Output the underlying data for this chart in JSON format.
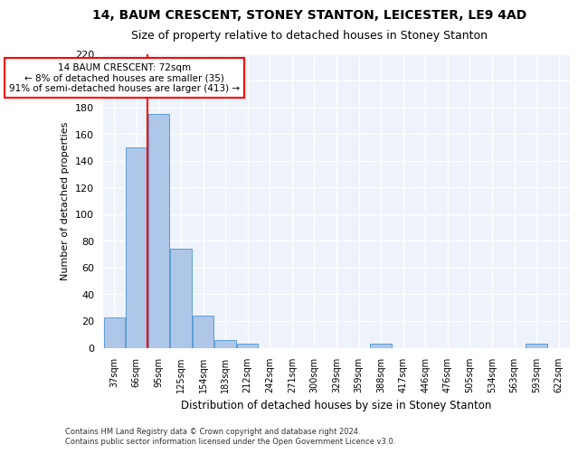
{
  "title": "14, BAUM CRESCENT, STONEY STANTON, LEICESTER, LE9 4AD",
  "subtitle": "Size of property relative to detached houses in Stoney Stanton",
  "xlabel": "Distribution of detached houses by size in Stoney Stanton",
  "ylabel": "Number of detached properties",
  "categories": [
    "37sqm",
    "66sqm",
    "95sqm",
    "125sqm",
    "154sqm",
    "183sqm",
    "212sqm",
    "242sqm",
    "271sqm",
    "300sqm",
    "329sqm",
    "359sqm",
    "388sqm",
    "417sqm",
    "446sqm",
    "476sqm",
    "505sqm",
    "534sqm",
    "563sqm",
    "593sqm",
    "622sqm"
  ],
  "values": [
    23,
    150,
    175,
    74,
    24,
    6,
    3,
    0,
    0,
    0,
    0,
    0,
    3,
    0,
    0,
    0,
    0,
    0,
    0,
    3,
    0
  ],
  "bar_color": "#aec6e8",
  "bar_edgecolor": "#5a9fd4",
  "annotation_text": "14 BAUM CRESCENT: 72sqm\n← 8% of detached houses are smaller (35)\n91% of semi-detached houses are larger (413) →",
  "annotation_box_color": "white",
  "annotation_box_edgecolor": "red",
  "vline_color": "red",
  "vline_xindex": 1.5,
  "ylim": [
    0,
    220
  ],
  "yticks": [
    0,
    20,
    40,
    60,
    80,
    100,
    120,
    140,
    160,
    180,
    200,
    220
  ],
  "footnote": "Contains HM Land Registry data © Crown copyright and database right 2024.\nContains public sector information licensed under the Open Government Licence v3.0.",
  "bg_color": "#eef3fb",
  "grid_color": "white",
  "title_fontsize": 10,
  "subtitle_fontsize": 9,
  "bar_width": 0.95
}
